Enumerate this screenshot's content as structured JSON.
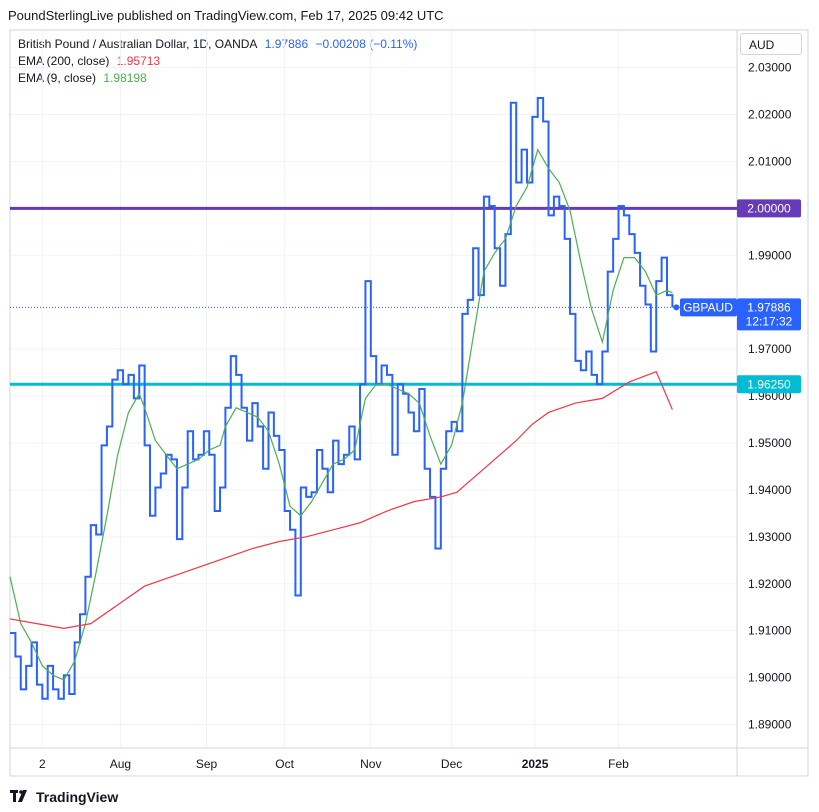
{
  "header": {
    "publisher_line": "PoundSterlingLive published on TradingView.com, Feb 17, 2025 09:42 UTC"
  },
  "legend": {
    "symbol": "British Pound / Australian Dollar, 1D, OANDA",
    "last": "1.97886",
    "change": "−0.00208 (−0.11%)",
    "ema200_label": "EMA (200, close)",
    "ema200_value": "1.95713",
    "ema9_label": "EMA (9, close)",
    "ema9_value": "1.98198"
  },
  "currency": "AUD",
  "price_tags": {
    "upper_level": "2.00000",
    "lower_level": "1.96250",
    "last_symbol": "GBPAUD",
    "last_price": "1.97886",
    "countdown": "12:17:32"
  },
  "footer": {
    "brand": "TradingView"
  },
  "colors": {
    "price_line": "#2962ff",
    "ema9": "#4caf50",
    "ema200": "#f23645",
    "upper_level": "#673ab7",
    "lower_level": "#00bcd4",
    "grid": "#f0f3fa"
  },
  "chart_data": {
    "type": "line",
    "title": "British Pound / Australian Dollar, 1D, OANDA",
    "ylim": [
      1.885,
      2.038
    ],
    "y_ticks": [
      "2.03000",
      "2.02000",
      "2.01000",
      "1.99000",
      "1.97000",
      "1.96000",
      "1.95000",
      "1.94000",
      "1.93000",
      "1.92000",
      "1.91000",
      "1.90000",
      "1.89000"
    ],
    "x_ticks": [
      {
        "label": "2",
        "day": 12
      },
      {
        "label": "Aug",
        "day": 41
      },
      {
        "label": "Sep",
        "day": 73
      },
      {
        "label": "Oct",
        "day": 102
      },
      {
        "label": "Nov",
        "day": 134
      },
      {
        "label": "Dec",
        "day": 164
      },
      {
        "label": "2025",
        "day": 195,
        "bold": true
      },
      {
        "label": "Feb",
        "day": 226
      }
    ],
    "x_range": [
      0,
      270
    ],
    "horizontal_levels": [
      {
        "value": 2.0,
        "label": "2.00000",
        "color": "#673ab7"
      },
      {
        "value": 1.9625,
        "label": "1.96250",
        "color": "#00bcd4"
      }
    ],
    "series": [
      {
        "name": "GBPAUD",
        "color": "#2962ff",
        "step": true,
        "points": [
          [
            0,
            1.9095
          ],
          [
            2,
            1.9045
          ],
          [
            4,
            1.8975
          ],
          [
            6,
            1.9025
          ],
          [
            8,
            1.9075
          ],
          [
            10,
            1.8985
          ],
          [
            12,
            1.8955
          ],
          [
            14,
            1.9025
          ],
          [
            16,
            1.8975
          ],
          [
            18,
            1.8955
          ],
          [
            20,
            1.9005
          ],
          [
            22,
            1.8965
          ],
          [
            24,
            1.9075
          ],
          [
            26,
            1.9135
          ],
          [
            28,
            1.9215
          ],
          [
            30,
            1.9325
          ],
          [
            32,
            1.9305
          ],
          [
            34,
            1.9495
          ],
          [
            36,
            1.9535
          ],
          [
            38,
            1.9635
          ],
          [
            40,
            1.9655
          ],
          [
            42,
            1.9625
          ],
          [
            44,
            1.9645
          ],
          [
            46,
            1.9595
          ],
          [
            48,
            1.9665
          ],
          [
            50,
            1.9495
          ],
          [
            52,
            1.9345
          ],
          [
            54,
            1.9405
          ],
          [
            56,
            1.9435
          ],
          [
            58,
            1.9475
          ],
          [
            60,
            1.9465
          ],
          [
            62,
            1.9295
          ],
          [
            64,
            1.9405
          ],
          [
            66,
            1.9525
          ],
          [
            68,
            1.9465
          ],
          [
            70,
            1.9475
          ],
          [
            72,
            1.9525
          ],
          [
            74,
            1.9475
          ],
          [
            76,
            1.9355
          ],
          [
            78,
            1.9405
          ],
          [
            80,
            1.9575
          ],
          [
            82,
            1.9685
          ],
          [
            84,
            1.9645
          ],
          [
            86,
            1.9575
          ],
          [
            88,
            1.9505
          ],
          [
            90,
            1.9585
          ],
          [
            92,
            1.9535
          ],
          [
            94,
            1.9445
          ],
          [
            96,
            1.9565
          ],
          [
            98,
            1.9515
          ],
          [
            100,
            1.9485
          ],
          [
            102,
            1.9355
          ],
          [
            104,
            1.9315
          ],
          [
            106,
            1.9175
          ],
          [
            108,
            1.9405
          ],
          [
            110,
            1.9385
          ],
          [
            112,
            1.9395
          ],
          [
            114,
            1.9485
          ],
          [
            116,
            1.9445
          ],
          [
            118,
            1.9395
          ],
          [
            120,
            1.9505
          ],
          [
            122,
            1.9455
          ],
          [
            124,
            1.9475
          ],
          [
            126,
            1.9535
          ],
          [
            128,
            1.9465
          ],
          [
            130,
            1.9625
          ],
          [
            132,
            1.9845
          ],
          [
            134,
            1.9685
          ],
          [
            136,
            1.9625
          ],
          [
            138,
            1.9665
          ],
          [
            140,
            1.9645
          ],
          [
            142,
            1.9475
          ],
          [
            144,
            1.9625
          ],
          [
            146,
            1.9605
          ],
          [
            148,
            1.9565
          ],
          [
            150,
            1.9525
          ],
          [
            152,
            1.9615
          ],
          [
            154,
            1.9445
          ],
          [
            156,
            1.9385
          ],
          [
            158,
            1.9275
          ],
          [
            160,
            1.9445
          ],
          [
            162,
            1.9525
          ],
          [
            164,
            1.9545
          ],
          [
            166,
            1.9525
          ],
          [
            168,
            1.9775
          ],
          [
            170,
            1.9805
          ],
          [
            172,
            1.9915
          ],
          [
            174,
            1.9815
          ],
          [
            176,
            2.0025
          ],
          [
            178,
            2.0005
          ],
          [
            180,
            1.9915
          ],
          [
            182,
            1.9835
          ],
          [
            184,
            1.9945
          ],
          [
            186,
            2.0225
          ],
          [
            188,
            2.0055
          ],
          [
            190,
            2.0125
          ],
          [
            192,
            2.0055
          ],
          [
            194,
            2.0195
          ],
          [
            196,
            2.0235
          ],
          [
            198,
            2.0185
          ],
          [
            200,
            1.9985
          ],
          [
            202,
            2.0025
          ],
          [
            204,
            2.0005
          ],
          [
            206,
            1.9935
          ],
          [
            208,
            1.9775
          ],
          [
            210,
            1.9675
          ],
          [
            212,
            1.9655
          ],
          [
            214,
            1.9695
          ],
          [
            216,
            1.9645
          ],
          [
            218,
            1.9625
          ],
          [
            220,
            1.9695
          ],
          [
            222,
            1.9865
          ],
          [
            224,
            1.9935
          ],
          [
            226,
            2.0005
          ],
          [
            228,
            1.9985
          ],
          [
            230,
            1.9945
          ],
          [
            232,
            1.9905
          ],
          [
            234,
            1.9835
          ],
          [
            236,
            1.9795
          ],
          [
            238,
            1.9695
          ],
          [
            240,
            1.9845
          ],
          [
            242,
            1.9895
          ],
          [
            244,
            1.9815
          ],
          [
            246,
            1.9789
          ]
        ]
      },
      {
        "name": "EMA (9, close)",
        "color": "#4caf50",
        "step": false,
        "points": [
          [
            0,
            1.9215
          ],
          [
            4,
            1.9115
          ],
          [
            8,
            1.9075
          ],
          [
            12,
            1.9025
          ],
          [
            16,
            1.9005
          ],
          [
            20,
            1.8995
          ],
          [
            24,
            1.9035
          ],
          [
            28,
            1.9115
          ],
          [
            32,
            1.9225
          ],
          [
            36,
            1.9345
          ],
          [
            40,
            1.9475
          ],
          [
            44,
            1.9565
          ],
          [
            48,
            1.9605
          ],
          [
            50,
            1.9575
          ],
          [
            54,
            1.9505
          ],
          [
            58,
            1.9475
          ],
          [
            62,
            1.9445
          ],
          [
            66,
            1.9455
          ],
          [
            70,
            1.9465
          ],
          [
            74,
            1.9485
          ],
          [
            78,
            1.9495
          ],
          [
            80,
            1.9535
          ],
          [
            84,
            1.9575
          ],
          [
            88,
            1.9565
          ],
          [
            92,
            1.9555
          ],
          [
            96,
            1.9525
          ],
          [
            100,
            1.9455
          ],
          [
            104,
            1.9365
          ],
          [
            108,
            1.9345
          ],
          [
            112,
            1.9375
          ],
          [
            116,
            1.9415
          ],
          [
            120,
            1.9455
          ],
          [
            124,
            1.9465
          ],
          [
            128,
            1.9485
          ],
          [
            132,
            1.9595
          ],
          [
            136,
            1.9625
          ],
          [
            140,
            1.9625
          ],
          [
            144,
            1.9615
          ],
          [
            148,
            1.9605
          ],
          [
            152,
            1.9585
          ],
          [
            156,
            1.9515
          ],
          [
            160,
            1.9455
          ],
          [
            164,
            1.9495
          ],
          [
            168,
            1.9585
          ],
          [
            172,
            1.9725
          ],
          [
            176,
            1.9865
          ],
          [
            180,
            1.9905
          ],
          [
            184,
            1.9935
          ],
          [
            188,
            2.0005
          ],
          [
            192,
            2.0045
          ],
          [
            196,
            2.0125
          ],
          [
            200,
            2.0085
          ],
          [
            204,
            2.0055
          ],
          [
            208,
            1.9995
          ],
          [
            212,
            1.9885
          ],
          [
            216,
            1.9785
          ],
          [
            220,
            1.9715
          ],
          [
            224,
            1.9825
          ],
          [
            228,
            1.9895
          ],
          [
            232,
            1.9895
          ],
          [
            236,
            1.9865
          ],
          [
            240,
            1.9815
          ],
          [
            244,
            1.9825
          ],
          [
            246,
            1.982
          ]
        ]
      },
      {
        "name": "EMA (200, close)",
        "color": "#f23645",
        "step": false,
        "points": [
          [
            0,
            1.9125
          ],
          [
            10,
            1.9115
          ],
          [
            20,
            1.9105
          ],
          [
            30,
            1.9115
          ],
          [
            40,
            1.9155
          ],
          [
            50,
            1.9195
          ],
          [
            60,
            1.9215
          ],
          [
            70,
            1.9235
          ],
          [
            80,
            1.9255
          ],
          [
            90,
            1.9275
          ],
          [
            100,
            1.929
          ],
          [
            110,
            1.93
          ],
          [
            120,
            1.9315
          ],
          [
            130,
            1.933
          ],
          [
            140,
            1.9355
          ],
          [
            150,
            1.9375
          ],
          [
            160,
            1.9385
          ],
          [
            166,
            1.9395
          ],
          [
            170,
            1.9415
          ],
          [
            176,
            1.9445
          ],
          [
            182,
            1.9475
          ],
          [
            188,
            1.9505
          ],
          [
            194,
            1.954
          ],
          [
            200,
            1.9565
          ],
          [
            210,
            1.9585
          ],
          [
            220,
            1.9595
          ],
          [
            230,
            1.963
          ],
          [
            240,
            1.9652
          ],
          [
            246,
            1.9571
          ]
        ]
      }
    ]
  }
}
